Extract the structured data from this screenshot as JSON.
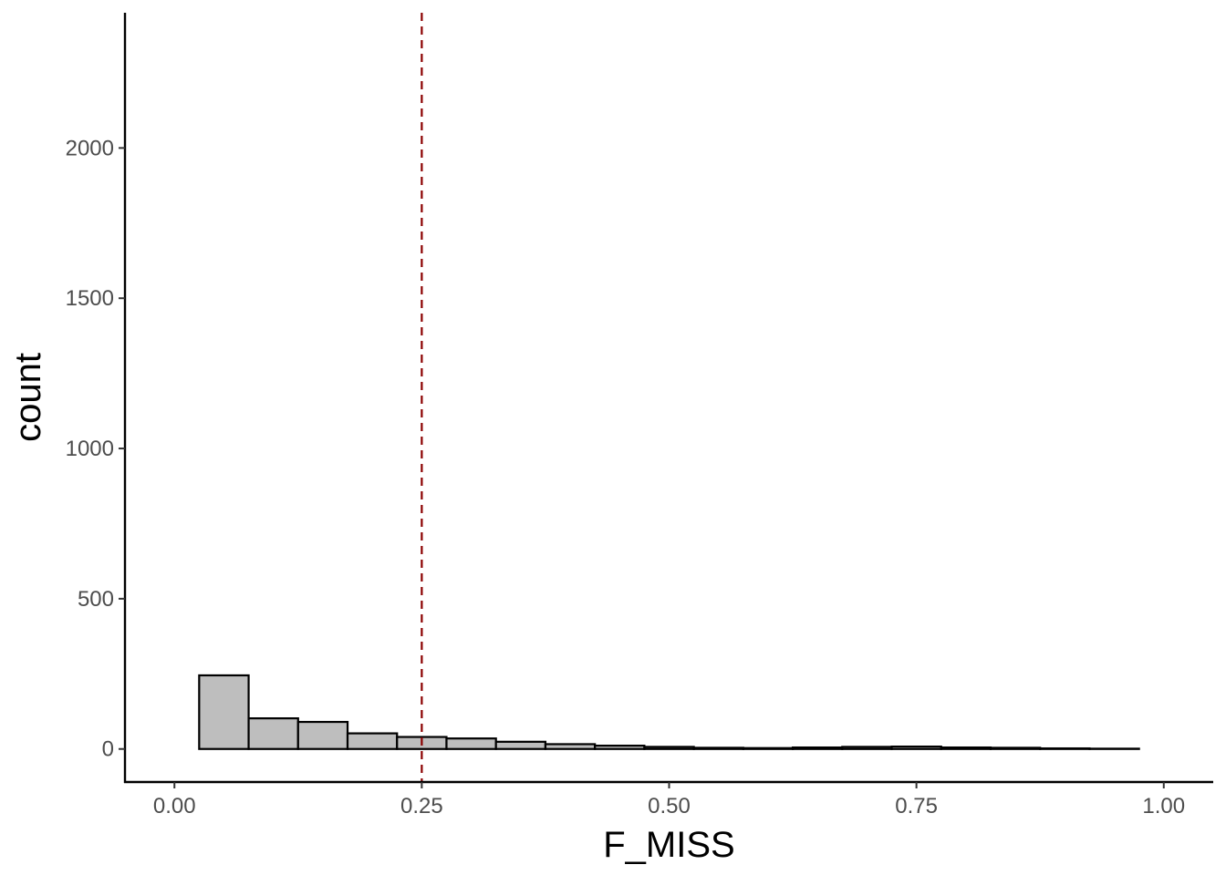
{
  "chart_data": {
    "type": "bar",
    "subtype": "histogram",
    "title": "",
    "xlabel": "F_MISS",
    "ylabel": "count",
    "xlim": [
      -0.05,
      1.05
    ],
    "ylim": [
      -110,
      2450
    ],
    "x_ticks": [
      0.0,
      0.25,
      0.5,
      0.75,
      1.0
    ],
    "x_tick_labels": [
      "0.00",
      "0.25",
      "0.50",
      "0.75",
      "1.00"
    ],
    "y_ticks": [
      0,
      500,
      1000,
      1500,
      2000
    ],
    "y_tick_labels": [
      "0",
      "500",
      "1000",
      "1500",
      "2000"
    ],
    "bin_width": 0.05,
    "bins": [
      {
        "x_start": 0.025,
        "x_end": 0.075,
        "count": 245
      },
      {
        "x_start": 0.075,
        "x_end": 0.125,
        "count": 102
      },
      {
        "x_start": 0.125,
        "x_end": 0.175,
        "count": 90
      },
      {
        "x_start": 0.175,
        "x_end": 0.225,
        "count": 52
      },
      {
        "x_start": 0.225,
        "x_end": 0.275,
        "count": 40
      },
      {
        "x_start": 0.275,
        "x_end": 0.325,
        "count": 35
      },
      {
        "x_start": 0.325,
        "x_end": 0.375,
        "count": 24
      },
      {
        "x_start": 0.375,
        "x_end": 0.425,
        "count": 16
      },
      {
        "x_start": 0.425,
        "x_end": 0.475,
        "count": 11
      },
      {
        "x_start": 0.475,
        "x_end": 0.525,
        "count": 7
      },
      {
        "x_start": 0.525,
        "x_end": 0.575,
        "count": 4
      },
      {
        "x_start": 0.575,
        "x_end": 0.625,
        "count": 3
      },
      {
        "x_start": 0.625,
        "x_end": 0.675,
        "count": 5
      },
      {
        "x_start": 0.675,
        "x_end": 0.725,
        "count": 7
      },
      {
        "x_start": 0.725,
        "x_end": 0.775,
        "count": 8
      },
      {
        "x_start": 0.775,
        "x_end": 0.825,
        "count": 5
      },
      {
        "x_start": 0.825,
        "x_end": 0.875,
        "count": 4
      },
      {
        "x_start": 0.875,
        "x_end": 0.925,
        "count": 2
      },
      {
        "x_start": 0.925,
        "x_end": 0.975,
        "count": 1
      }
    ],
    "threshold_line": {
      "x": 0.25,
      "style": "dashed",
      "color": "#8b0000"
    },
    "bar_fill": "#bebebe",
    "bar_stroke": "#000000",
    "axis_color": "#000000",
    "grid": false,
    "legend": "none"
  }
}
